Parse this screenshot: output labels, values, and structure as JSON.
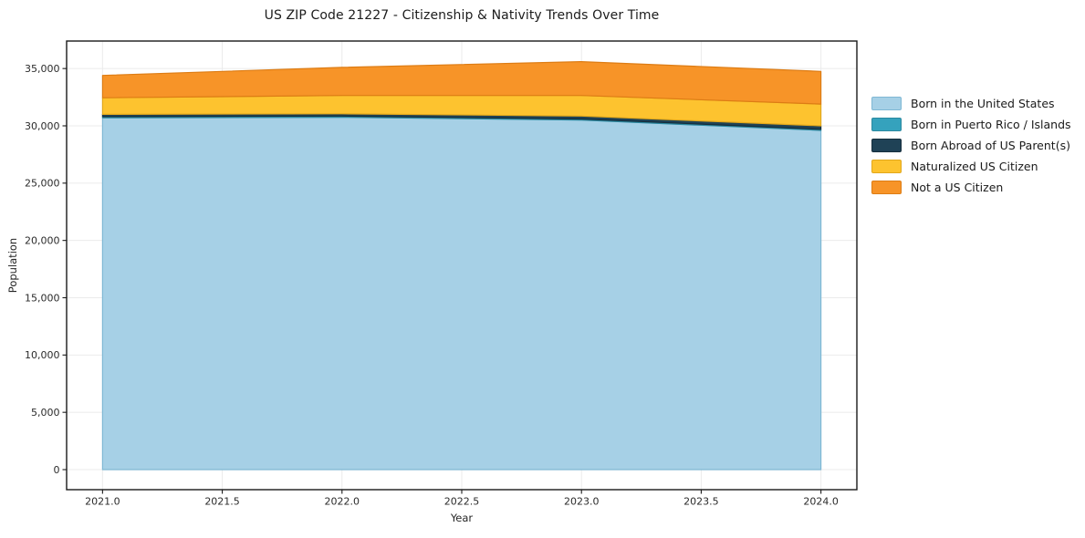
{
  "chart_data": {
    "type": "area",
    "stacked": true,
    "title": "US ZIP Code 21227 - Citizenship & Nativity Trends Over Time",
    "xlabel": "Year",
    "ylabel": "Population",
    "x": [
      2021,
      2022,
      2023,
      2024
    ],
    "series": [
      {
        "name": "Born in the United States",
        "color": "#a6d0e6",
        "edge": "#7fb8d4",
        "values": [
          30700,
          30750,
          30500,
          29600
        ]
      },
      {
        "name": "Born in Puerto Rico / Islands",
        "color": "#35a2bd",
        "edge": "#2b89a0",
        "values": [
          100,
          100,
          100,
          100
        ]
      },
      {
        "name": "Born Abroad of US Parent(s)",
        "color": "#1f4256",
        "edge": "#152e3d",
        "values": [
          200,
          200,
          250,
          300
        ]
      },
      {
        "name": "Naturalized US Citizen",
        "color": "#fdc32f",
        "edge": "#e2a81c",
        "values": [
          1450,
          1600,
          1800,
          1900
        ]
      },
      {
        "name": "Not a US Citizen",
        "color": "#f79428",
        "edge": "#dd7c14",
        "values": [
          1950,
          2450,
          2950,
          2850
        ]
      }
    ],
    "totals": [
      34400,
      35100,
      35600,
      34750
    ],
    "xlim": [
      2020.85,
      2024.15
    ],
    "ylim": [
      -1750,
      37400
    ],
    "xticks": {
      "values": [
        2021.0,
        2021.5,
        2022.0,
        2022.5,
        2023.0,
        2023.5,
        2024.0
      ],
      "labels": [
        "2021.0",
        "2021.5",
        "2022.0",
        "2022.5",
        "2023.0",
        "2023.5",
        "2024.0"
      ]
    },
    "yticks": {
      "values": [
        0,
        5000,
        10000,
        15000,
        20000,
        25000,
        30000,
        35000
      ],
      "labels": [
        "0",
        "5,000",
        "10,000",
        "15,000",
        "20,000",
        "25,000",
        "30,000",
        "35,000"
      ]
    },
    "grid": true,
    "grid_color": "#ebebeb",
    "frame_color": "#1a1a1a",
    "tick_label_color": "#2b2b2b",
    "legend_position": "outside-right"
  }
}
